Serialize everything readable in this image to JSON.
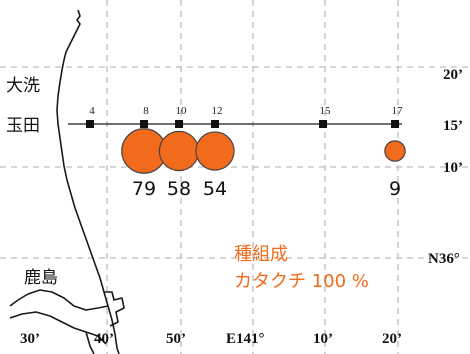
{
  "colors": {
    "accent": "#f26a1b",
    "marker": "#111111",
    "grid": "#bdbdbd"
  },
  "places": {
    "oarai": "大洗",
    "tamada": "玉田",
    "kashima": "鹿島"
  },
  "latitude_labels": [
    "20’",
    "15’",
    "10’",
    "N36°"
  ],
  "longitude_labels": [
    "30’",
    "40’",
    "50’",
    "E141°",
    "10’",
    "20’"
  ],
  "stations": [
    {
      "label": "4"
    },
    {
      "label": "8"
    },
    {
      "label": "10"
    },
    {
      "label": "12"
    },
    {
      "label": "15"
    },
    {
      "label": "17"
    }
  ],
  "catches": [
    {
      "station": "8",
      "count": "79"
    },
    {
      "station": "10",
      "count": "58"
    },
    {
      "station": "12",
      "count": "54"
    },
    {
      "station": "17",
      "count": "9"
    }
  ],
  "species": {
    "title": "種組成",
    "composition": "カタクチ 100 %"
  }
}
